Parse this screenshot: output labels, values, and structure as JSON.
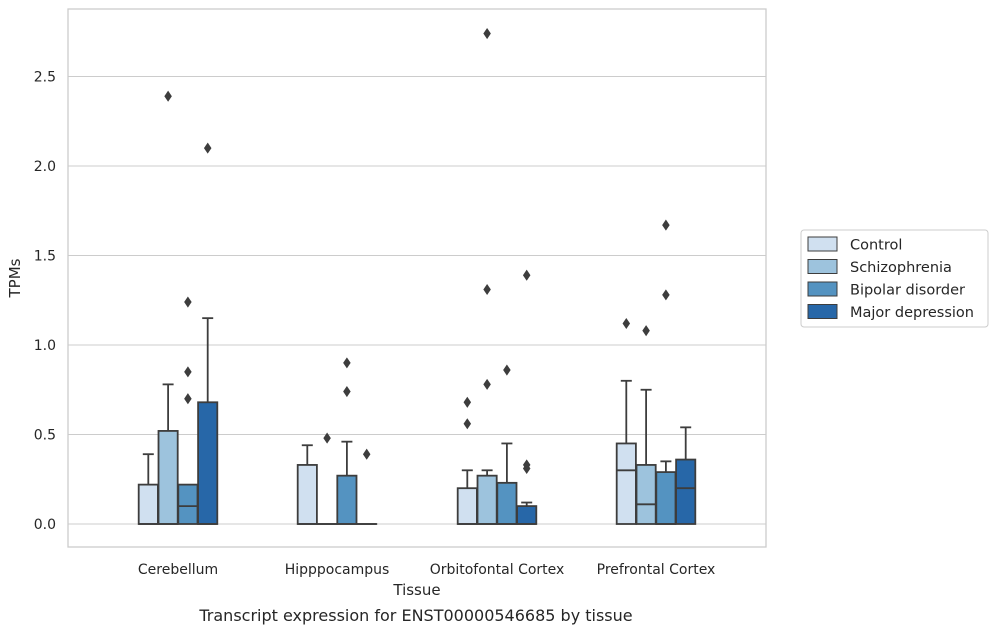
{
  "caption": "Transcript expression for ENST00000546685 by tissue",
  "chart_data": {
    "type": "box",
    "xlabel": "Tissue",
    "ylabel": "TPMs",
    "ylim": [
      -0.13,
      2.87
    ],
    "yticks": [
      0.0,
      0.5,
      1.0,
      1.5,
      2.0,
      2.5
    ],
    "ytick_labels": [
      "0.0",
      "0.5",
      "1.0",
      "1.5",
      "2.0",
      "2.5"
    ],
    "grid": "horizontal",
    "legend_position": "right",
    "categories": [
      "Cerebellum",
      "Hipppocampus",
      "Orbitofontal Cortex",
      "Prefrontal Cortex"
    ],
    "series": [
      {
        "name": "Control",
        "color": "#d0e0f0",
        "boxes": [
          {
            "q1": 0.0,
            "median": 0.0,
            "q3": 0.22,
            "whisker_low": 0.0,
            "whisker_high": 0.39,
            "outliers": []
          },
          {
            "q1": 0.0,
            "median": 0.0,
            "q3": 0.33,
            "whisker_low": 0.0,
            "whisker_high": 0.44,
            "outliers": []
          },
          {
            "q1": 0.0,
            "median": 0.0,
            "q3": 0.2,
            "whisker_low": 0.0,
            "whisker_high": 0.3,
            "outliers": [
              0.56,
              0.68
            ]
          },
          {
            "q1": 0.0,
            "median": 0.3,
            "q3": 0.45,
            "whisker_low": 0.0,
            "whisker_high": 0.8,
            "outliers": [
              1.12
            ]
          }
        ]
      },
      {
        "name": "Schizophrenia",
        "color": "#9dc3dd",
        "boxes": [
          {
            "q1": 0.0,
            "median": 0.0,
            "q3": 0.52,
            "whisker_low": 0.0,
            "whisker_high": 0.78,
            "outliers": [
              2.39
            ]
          },
          {
            "q1": 0.0,
            "median": 0.0,
            "q3": 0.0,
            "whisker_low": 0.0,
            "whisker_high": 0.0,
            "outliers": [
              0.48
            ]
          },
          {
            "q1": 0.0,
            "median": 0.0,
            "q3": 0.27,
            "whisker_low": 0.0,
            "whisker_high": 0.3,
            "outliers": [
              0.78,
              1.31,
              2.74
            ]
          },
          {
            "q1": 0.0,
            "median": 0.11,
            "q3": 0.33,
            "whisker_low": 0.0,
            "whisker_high": 0.75,
            "outliers": [
              1.08
            ]
          }
        ]
      },
      {
        "name": "Bipolar disorder",
        "color": "#5493c1",
        "boxes": [
          {
            "q1": 0.0,
            "median": 0.1,
            "q3": 0.22,
            "whisker_low": 0.0,
            "whisker_high": 0.22,
            "outliers": [
              0.7,
              0.85,
              1.24
            ]
          },
          {
            "q1": 0.0,
            "median": 0.0,
            "q3": 0.27,
            "whisker_low": 0.0,
            "whisker_high": 0.46,
            "outliers": [
              0.74,
              0.9
            ]
          },
          {
            "q1": 0.0,
            "median": 0.0,
            "q3": 0.23,
            "whisker_low": 0.0,
            "whisker_high": 0.45,
            "outliers": [
              0.86
            ]
          },
          {
            "q1": 0.0,
            "median": 0.0,
            "q3": 0.29,
            "whisker_low": 0.0,
            "whisker_high": 0.35,
            "outliers": [
              1.28,
              1.67
            ]
          }
        ]
      },
      {
        "name": "Major depression",
        "color": "#2767a8",
        "boxes": [
          {
            "q1": 0.0,
            "median": 0.0,
            "q3": 0.68,
            "whisker_low": 0.0,
            "whisker_high": 1.15,
            "outliers": [
              2.1
            ]
          },
          {
            "q1": 0.0,
            "median": 0.0,
            "q3": 0.0,
            "whisker_low": 0.0,
            "whisker_high": 0.0,
            "outliers": [
              0.39
            ]
          },
          {
            "q1": 0.0,
            "median": 0.0,
            "q3": 0.1,
            "whisker_low": 0.0,
            "whisker_high": 0.12,
            "outliers": [
              0.31,
              0.33,
              1.39
            ]
          },
          {
            "q1": 0.0,
            "median": 0.2,
            "q3": 0.36,
            "whisker_low": 0.0,
            "whisker_high": 0.54,
            "outliers": []
          }
        ]
      }
    ]
  }
}
